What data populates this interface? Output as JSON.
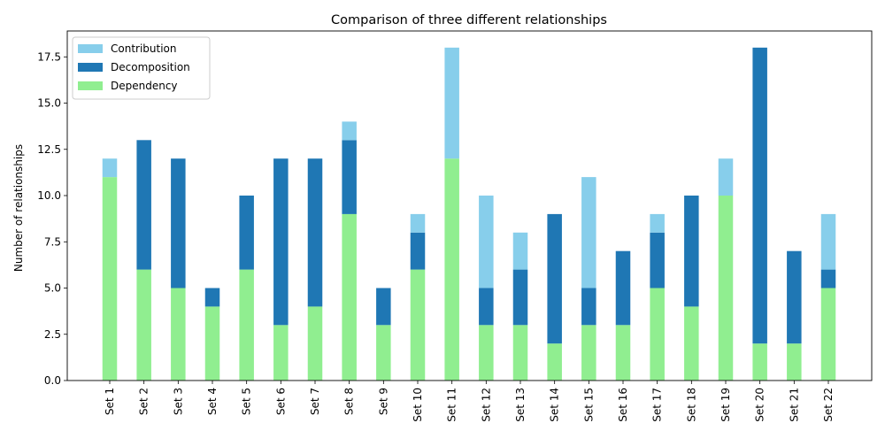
{
  "chart_data": {
    "type": "bar",
    "stacked": true,
    "title": "Comparison of three different relationships",
    "xlabel": "",
    "ylabel": "Number of relationships",
    "ylim": [
      0,
      18.9
    ],
    "yticks": [
      "0.0",
      "2.5",
      "5.0",
      "7.5",
      "10.0",
      "12.5",
      "15.0",
      "17.5"
    ],
    "legend_position": "upper-left",
    "categories": [
      "Set 1",
      "Set 2",
      "Set 3",
      "Set 4",
      "Set 5",
      "Set 6",
      "Set 7",
      "Set 8",
      "Set 9",
      "Set 10",
      "Set 11",
      "Set 12",
      "Set 13",
      "Set 14",
      "Set 15",
      "Set 16",
      "Set 17",
      "Set 18",
      "Set 19",
      "Set 20",
      "Set 21",
      "Set 22"
    ],
    "series": [
      {
        "name": "Dependency",
        "color": "#90ee90",
        "values": [
          11,
          6,
          5,
          4,
          6,
          3,
          4,
          9,
          3,
          6,
          12,
          3,
          3,
          2,
          3,
          3,
          5,
          4,
          10,
          2,
          2,
          5
        ]
      },
      {
        "name": "Decomposition",
        "color": "#1f77b4",
        "values": [
          0,
          7,
          7,
          1,
          4,
          9,
          8,
          4,
          2,
          2,
          0,
          2,
          3,
          7,
          2,
          4,
          3,
          6,
          0,
          16,
          5,
          1
        ]
      },
      {
        "name": "Contribution",
        "color": "#87ceeb",
        "values": [
          1,
          0,
          0,
          0,
          0,
          0,
          0,
          1,
          0,
          1,
          6,
          5,
          2,
          0,
          6,
          0,
          1,
          0,
          2,
          0,
          0,
          3
        ]
      }
    ],
    "legend_order": [
      "Contribution",
      "Decomposition",
      "Dependency"
    ]
  }
}
